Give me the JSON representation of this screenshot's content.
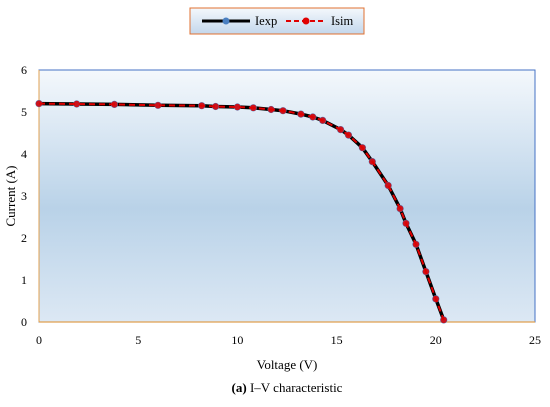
{
  "chart_data": {
    "type": "line",
    "xlabel": "Voltage (V)",
    "ylabel": "Current (A)",
    "xlim": [
      0,
      25
    ],
    "ylim": [
      0,
      6
    ],
    "xticks": [
      "0",
      "5",
      "10",
      "15",
      "20",
      "25"
    ],
    "yticks": [
      "0",
      "1",
      "2",
      "3",
      "4",
      "5",
      "6"
    ],
    "grid": false,
    "legend_position": "top-center",
    "caption_bold": "(a)",
    "caption_text": " I–V characteristic",
    "series": [
      {
        "name": "Iexp",
        "color": "#000000",
        "marker_color": "#4a7fc1",
        "style": "solid",
        "x": [
          0,
          1.9,
          3.8,
          6.0,
          8.2,
          8.9,
          10.0,
          10.8,
          11.7,
          12.3,
          13.2,
          13.8,
          14.3,
          15.2,
          15.6,
          16.3,
          16.8,
          17.6,
          18.2,
          18.5,
          19.0,
          19.5,
          20.0,
          20.4
        ],
        "y": [
          5.2,
          5.19,
          5.18,
          5.16,
          5.15,
          5.13,
          5.12,
          5.1,
          5.06,
          5.03,
          4.95,
          4.88,
          4.8,
          4.58,
          4.45,
          4.15,
          3.82,
          3.25,
          2.7,
          2.35,
          1.85,
          1.2,
          0.55,
          0.05
        ]
      },
      {
        "name": "Isim",
        "color": "#e00000",
        "marker_color": "#e00000",
        "style": "dashed",
        "x": [
          0,
          1.9,
          3.8,
          6.0,
          8.2,
          8.9,
          10.0,
          10.8,
          11.7,
          12.3,
          13.2,
          13.8,
          14.3,
          15.2,
          15.6,
          16.3,
          16.8,
          17.6,
          18.2,
          18.5,
          19.0,
          19.5,
          20.0,
          20.4
        ],
        "y": [
          5.2,
          5.19,
          5.18,
          5.16,
          5.15,
          5.13,
          5.12,
          5.1,
          5.06,
          5.03,
          4.95,
          4.88,
          4.8,
          4.58,
          4.45,
          4.15,
          3.82,
          3.25,
          2.7,
          2.35,
          1.85,
          1.2,
          0.55,
          0.05
        ]
      }
    ],
    "colors": {
      "plot_bg_top": "#f4f8fc",
      "plot_bg_mid": "#b9d2e8",
      "plot_border": "#4472c4",
      "axis_line": "#e0a050",
      "legend_border": "#e07030",
      "legend_bg_top": "#f4f8fc",
      "legend_bg_bottom": "#c3d7ec"
    }
  }
}
